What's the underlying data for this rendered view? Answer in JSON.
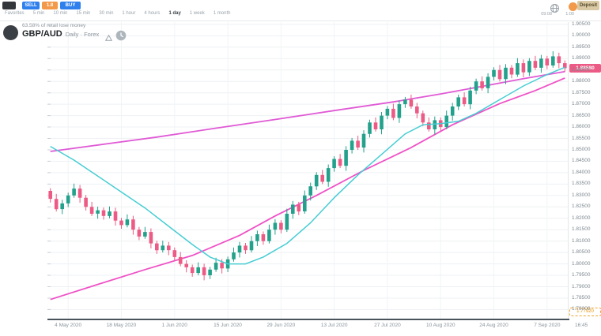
{
  "topbar": {
    "sell_label": "SELL",
    "spread_value": "1.8",
    "buy_label": "BUY",
    "timeframes": [
      {
        "label": "Favorites",
        "active": false
      },
      {
        "label": "5 min",
        "active": false
      },
      {
        "label": "10 min",
        "active": false
      },
      {
        "label": "15 min",
        "active": false
      },
      {
        "label": "30 min",
        "active": false
      },
      {
        "label": "1 hour",
        "active": false
      },
      {
        "label": "4 hours",
        "active": false
      },
      {
        "label": "1 day",
        "active": true
      },
      {
        "label": "1 week",
        "active": false
      },
      {
        "label": "1 month",
        "active": false
      }
    ],
    "clock_caption": "09:08",
    "session_caption": "1:00",
    "deposit_label": "Deposit"
  },
  "header": {
    "disclaimer": "63.58% of retail lose money",
    "symbol": "GBP/AUD",
    "subtitle": "Daily · Forex"
  },
  "icons": {
    "topbar_left": "app-logo",
    "topbar_right": [
      "globe-icon",
      "account-status-icon"
    ],
    "header": [
      "instrument-logo",
      "warning-triangle-icon",
      "market-hours-icon"
    ]
  },
  "price_axis": {
    "texts": [
      "1.90500",
      "1.90000",
      "1.89500",
      "1.89000",
      "1.88500",
      "1.88000",
      "1.87500",
      "1.87000",
      "1.86500",
      "1.86000",
      "1.85500",
      "1.85000",
      "1.84500",
      "1.84000",
      "1.83500",
      "1.83000",
      "1.82500",
      "1.82000",
      "1.81500",
      "1.81000",
      "1.80500",
      "1.80000",
      "1.79500",
      "1.79000",
      "1.78500",
      "1.78000"
    ],
    "prices": [
      1.905,
      1.9,
      1.895,
      1.89,
      1.885,
      1.88,
      1.875,
      1.87,
      1.865,
      1.86,
      1.855,
      1.85,
      1.845,
      1.84,
      1.835,
      1.83,
      1.825,
      1.82,
      1.815,
      1.81,
      1.805,
      1.8,
      1.795,
      1.79,
      1.785,
      1.78
    ]
  },
  "last_price": {
    "text": "1.88580",
    "price": 1.8858,
    "color": "#ec5b85"
  },
  "alert_price": {
    "text": "1.77920",
    "price": 1.7792,
    "color": "#f0a32f"
  },
  "time_axis": {
    "indices": [
      3,
      12,
      21,
      30,
      39,
      48,
      57,
      66,
      75,
      84
    ],
    "texts": [
      "4 May 2020",
      "18 May 2020",
      "1 Jun 2020",
      "15 Jun 2020",
      "29 Jun 2020",
      "13 Jul 2020",
      "27 Jul 2020",
      "10 Aug 2020",
      "24 Aug 2020",
      "7 Sep 2020"
    ],
    "timezone": "16:45"
  },
  "chart_data": {
    "type": "candlestick",
    "symbol": "GBP/AUD",
    "timeframe": "1 day",
    "price_min": 1.776,
    "price_max": 1.906,
    "up_color": "#23a18c",
    "down_color": "#ec5b85",
    "grid": true,
    "candles": {
      "open": [
        1.832,
        1.8285,
        1.824,
        1.8265,
        1.83,
        1.833,
        1.829,
        1.825,
        1.822,
        1.8235,
        1.821,
        1.823,
        1.819,
        1.817,
        1.8195,
        1.815,
        1.812,
        1.814,
        1.809,
        1.806,
        1.808,
        1.806,
        1.803,
        1.8,
        1.7985,
        1.796,
        1.7985,
        1.795,
        1.7975,
        1.8005,
        1.798,
        1.802,
        1.805,
        1.808,
        1.806,
        1.81,
        1.813,
        1.81,
        1.815,
        1.818,
        1.815,
        1.822,
        1.826,
        1.823,
        1.83,
        1.834,
        1.839,
        1.836,
        1.842,
        1.846,
        1.843,
        1.85,
        1.854,
        1.851,
        1.857,
        1.862,
        1.859,
        1.865,
        1.868,
        1.864,
        1.87,
        1.872,
        1.869,
        1.866,
        1.862,
        1.859,
        1.863,
        1.86,
        1.865,
        1.869,
        1.873,
        1.87,
        1.876,
        1.88,
        1.877,
        1.882,
        1.885,
        1.881,
        1.886,
        1.883,
        1.888,
        1.884,
        1.889,
        1.886,
        1.89,
        1.887,
        1.891,
        1.888
      ],
      "high": [
        1.8332,
        1.8307,
        1.8281,
        1.8312,
        1.8352,
        1.8346,
        1.8302,
        1.8272,
        1.8251,
        1.8247,
        1.8252,
        1.8246,
        1.8202,
        1.8217,
        1.8211,
        1.8162,
        1.8162,
        1.8156,
        1.8102,
        1.8102,
        1.8096,
        1.8072,
        1.8052,
        1.8016,
        1.7997,
        1.8007,
        1.8001,
        1.7987,
        1.8027,
        1.8021,
        1.8032,
        1.8072,
        1.8096,
        1.8092,
        1.8122,
        1.8146,
        1.8142,
        1.8172,
        1.8196,
        1.8192,
        1.8242,
        1.8276,
        1.8272,
        1.8322,
        1.8356,
        1.8402,
        1.8412,
        1.8436,
        1.8472,
        1.8482,
        1.8516,
        1.8552,
        1.8562,
        1.8586,
        1.8632,
        1.8642,
        1.8666,
        1.8692,
        1.8702,
        1.8716,
        1.8732,
        1.8742,
        1.8706,
        1.8672,
        1.8642,
        1.8646,
        1.8642,
        1.8672,
        1.8706,
        1.8742,
        1.8752,
        1.8776,
        1.8812,
        1.8822,
        1.8836,
        1.8862,
        1.8872,
        1.8876,
        1.8872,
        1.8902,
        1.8896,
        1.8902,
        1.8912,
        1.8916,
        1.8912,
        1.8932,
        1.8926,
        1.8892
      ],
      "low": [
        1.8269,
        1.823,
        1.8218,
        1.8249,
        1.829,
        1.8268,
        1.8234,
        1.821,
        1.8198,
        1.8194,
        1.82,
        1.8168,
        1.8154,
        1.816,
        1.8128,
        1.8104,
        1.811,
        1.8068,
        1.8044,
        1.805,
        1.8038,
        1.8014,
        1.799,
        1.7963,
        1.7944,
        1.795,
        1.7928,
        1.7934,
        1.7965,
        1.7958,
        1.7964,
        1.801,
        1.8028,
        1.8044,
        1.805,
        1.8078,
        1.8084,
        1.809,
        1.8128,
        1.8134,
        1.814,
        1.8198,
        1.8214,
        1.822,
        1.8278,
        1.8324,
        1.835,
        1.8338,
        1.8404,
        1.842,
        1.8408,
        1.8484,
        1.85,
        1.8488,
        1.8554,
        1.858,
        1.8568,
        1.8634,
        1.863,
        1.8618,
        1.8684,
        1.868,
        1.8638,
        1.8604,
        1.858,
        1.8568,
        1.8584,
        1.859,
        1.8628,
        1.8674,
        1.869,
        1.8678,
        1.8744,
        1.876,
        1.8748,
        1.8804,
        1.88,
        1.8788,
        1.8814,
        1.882,
        1.8818,
        1.8824,
        1.885,
        1.8838,
        1.8854,
        1.886,
        1.8858,
        1.8842
      ],
      "close": [
        1.8285,
        1.824,
        1.8265,
        1.83,
        1.833,
        1.829,
        1.825,
        1.822,
        1.8235,
        1.821,
        1.823,
        1.819,
        1.817,
        1.8195,
        1.815,
        1.812,
        1.814,
        1.809,
        1.806,
        1.808,
        1.806,
        1.803,
        1.8,
        1.7985,
        1.796,
        1.7985,
        1.795,
        1.7975,
        1.8005,
        1.798,
        1.802,
        1.805,
        1.808,
        1.806,
        1.81,
        1.813,
        1.81,
        1.815,
        1.818,
        1.815,
        1.822,
        1.826,
        1.823,
        1.83,
        1.834,
        1.839,
        1.836,
        1.842,
        1.846,
        1.843,
        1.85,
        1.854,
        1.851,
        1.857,
        1.862,
        1.859,
        1.865,
        1.868,
        1.864,
        1.87,
        1.872,
        1.869,
        1.866,
        1.862,
        1.859,
        1.863,
        1.86,
        1.865,
        1.869,
        1.873,
        1.87,
        1.876,
        1.88,
        1.877,
        1.882,
        1.885,
        1.881,
        1.886,
        1.883,
        1.888,
        1.884,
        1.889,
        1.886,
        1.89,
        1.887,
        1.891,
        1.888,
        1.8858
      ]
    },
    "overlays": [
      {
        "name": "EMA fast",
        "color": "#46cdd3",
        "width": 1.5,
        "points": [
          [
            0,
            1.8515
          ],
          [
            4,
            1.8455
          ],
          [
            8,
            1.8385
          ],
          [
            12,
            1.8315
          ],
          [
            16,
            1.8245
          ],
          [
            20,
            1.8165
          ],
          [
            24,
            1.8085
          ],
          [
            27,
            1.803
          ],
          [
            30,
            1.8
          ],
          [
            33,
            1.8
          ],
          [
            36,
            1.803
          ],
          [
            40,
            1.809
          ],
          [
            44,
            1.818
          ],
          [
            48,
            1.829
          ],
          [
            52,
            1.839
          ],
          [
            56,
            1.848
          ],
          [
            60,
            1.857
          ],
          [
            63,
            1.861
          ],
          [
            66,
            1.8615
          ],
          [
            69,
            1.8625
          ],
          [
            72,
            1.866
          ],
          [
            76,
            1.872
          ],
          [
            80,
            1.878
          ],
          [
            84,
            1.883
          ],
          [
            87,
            1.8862
          ]
        ]
      },
      {
        "name": "MA mid",
        "color": "#e05ad5",
        "width": 1.8,
        "points": [
          [
            0,
            1.8493
          ],
          [
            10,
            1.8528
          ],
          [
            18,
            1.8556
          ],
          [
            28,
            1.8595
          ],
          [
            38,
            1.8633
          ],
          [
            48,
            1.8672
          ],
          [
            58,
            1.871
          ],
          [
            66,
            1.8745
          ],
          [
            74,
            1.8783
          ],
          [
            80,
            1.8812
          ],
          [
            87,
            1.8843
          ]
        ]
      },
      {
        "name": "MA slow",
        "color": "#ef51c6",
        "width": 1.8,
        "points": [
          [
            0,
            1.7844
          ],
          [
            8,
            1.791
          ],
          [
            16,
            1.7975
          ],
          [
            24,
            1.8037
          ],
          [
            32,
            1.8125
          ],
          [
            38,
            1.821
          ],
          [
            45,
            1.83
          ],
          [
            53,
            1.841
          ],
          [
            61,
            1.851
          ],
          [
            68,
            1.861
          ],
          [
            76,
            1.8703
          ],
          [
            82,
            1.876
          ],
          [
            87,
            1.8815
          ]
        ]
      }
    ]
  }
}
